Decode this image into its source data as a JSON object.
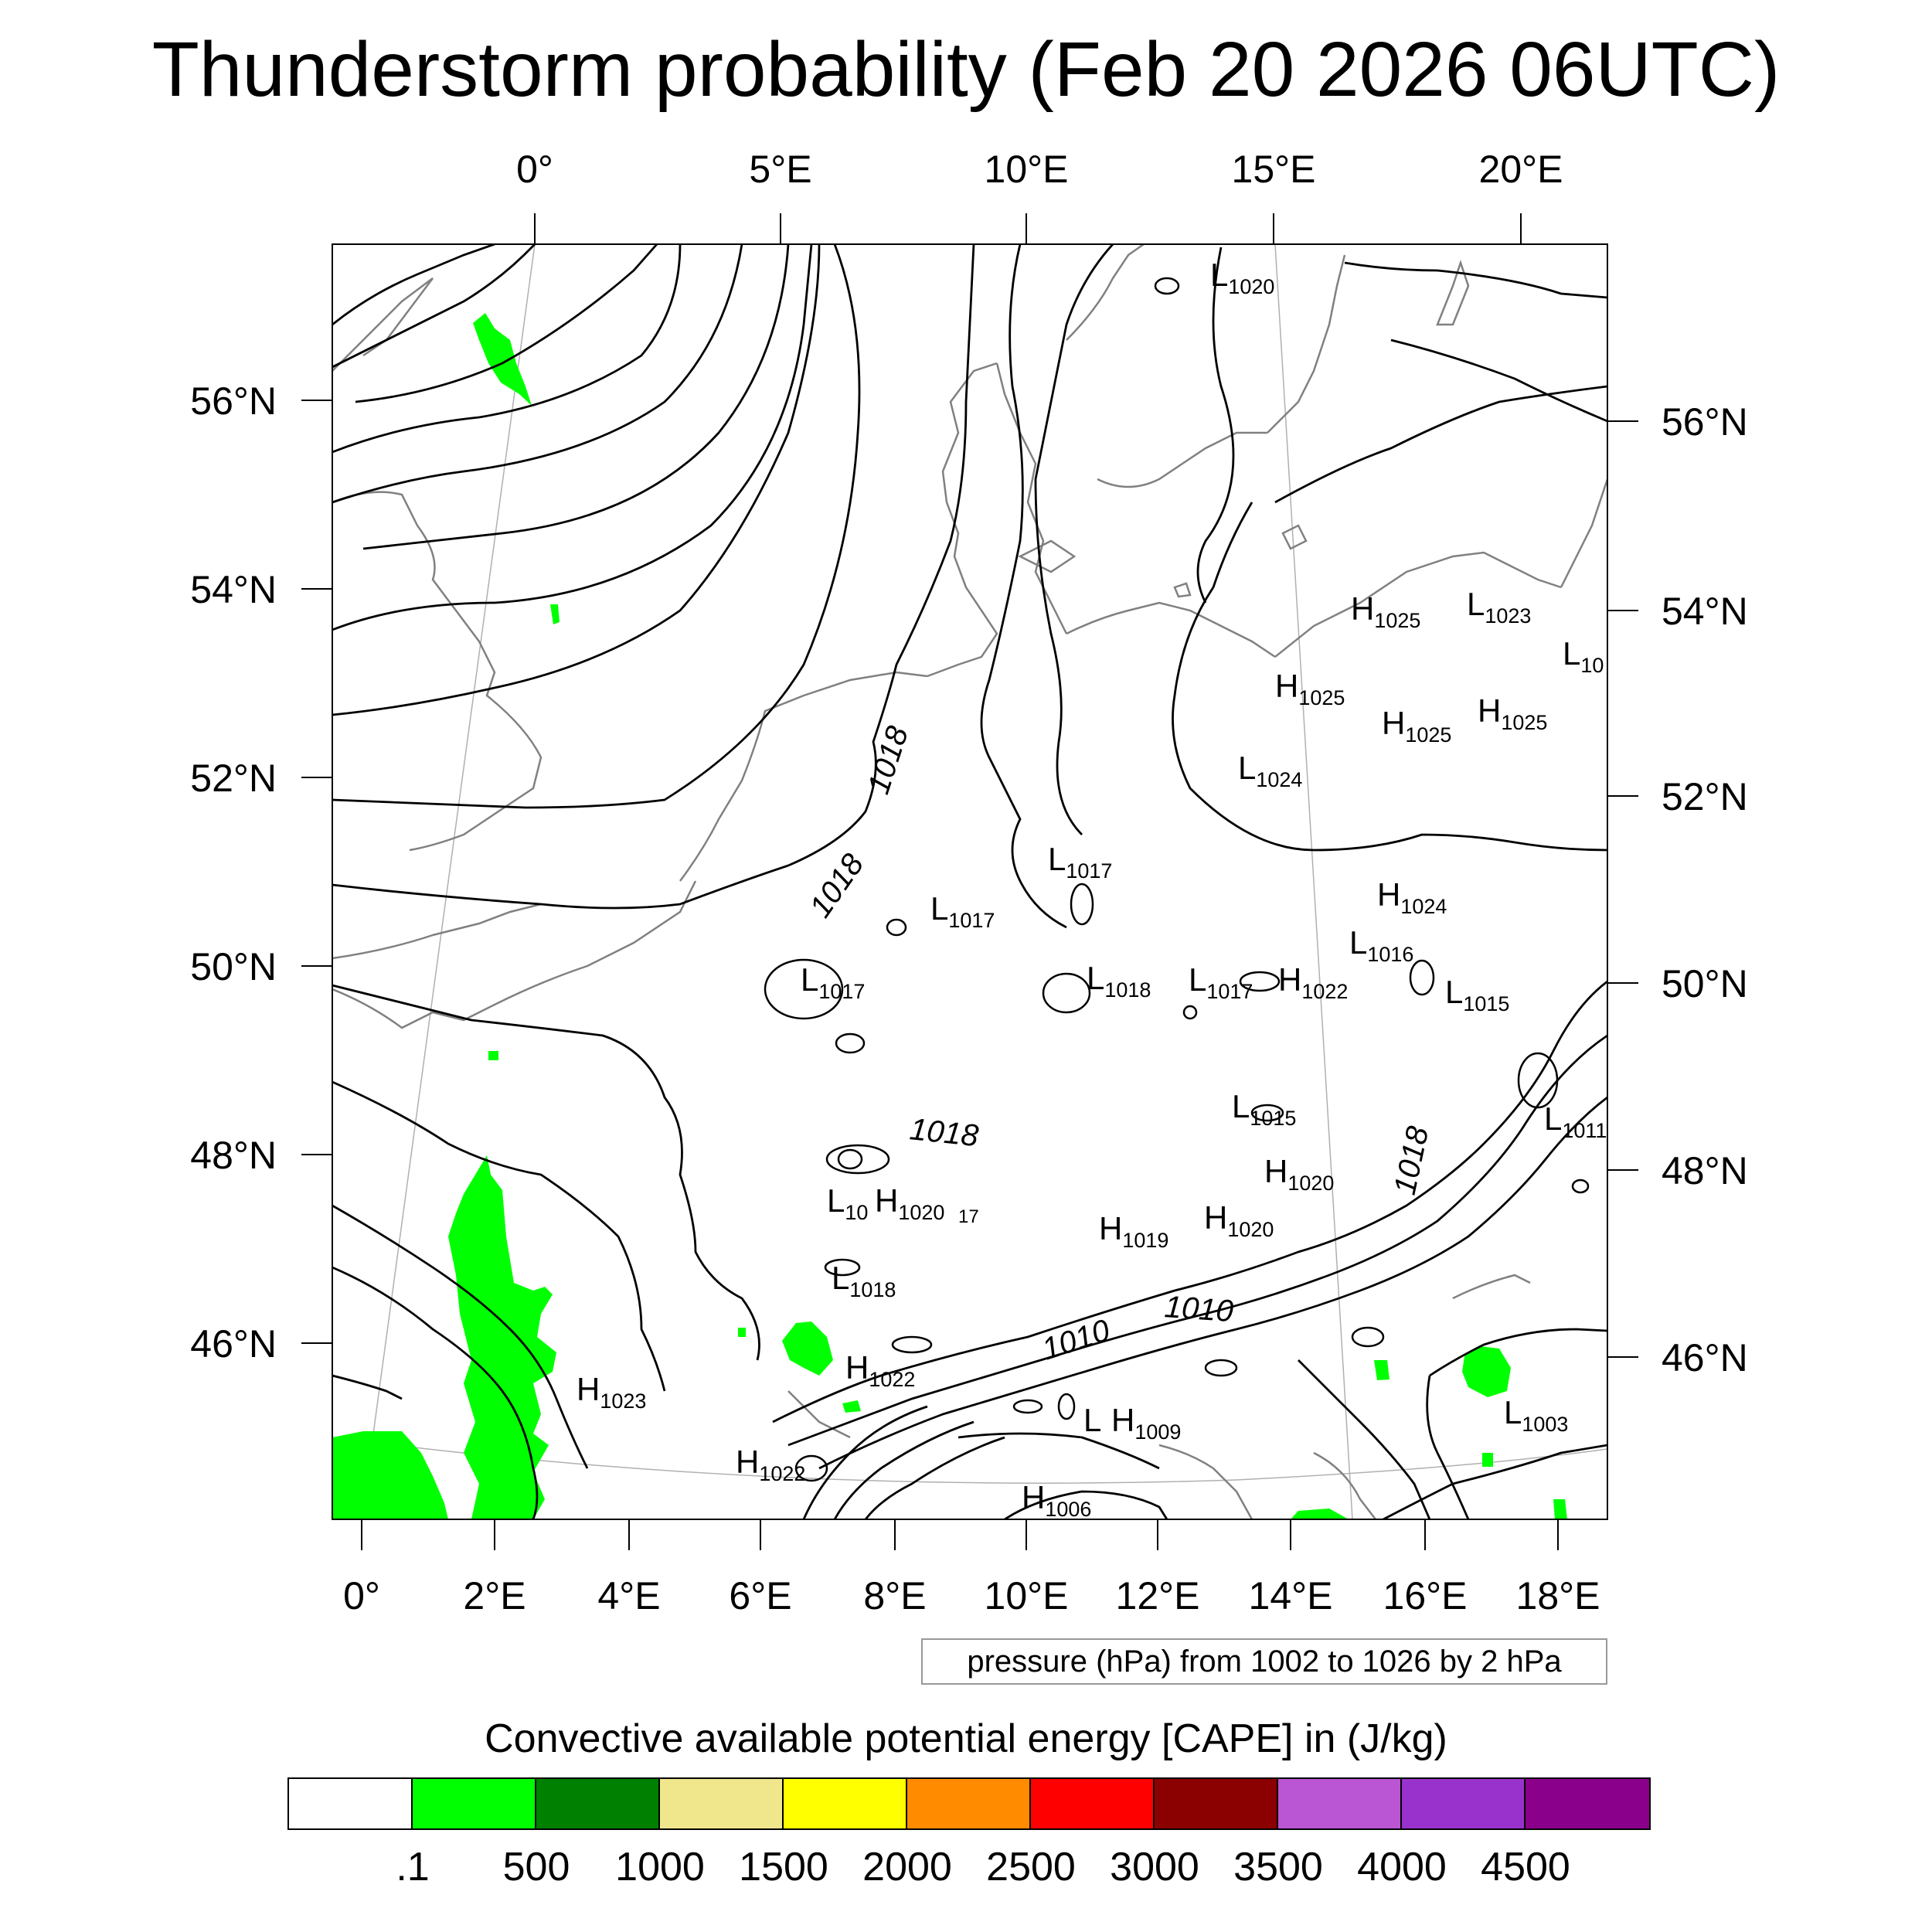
{
  "title": "Thunderstorm probability (Feb 20 2026 06UTC)",
  "map": {
    "top_lon_labels": [
      "0°",
      "5°E",
      "10°E",
      "15°E",
      "20°E"
    ],
    "bottom_lon_labels": [
      "0°",
      "2°E",
      "4°E",
      "6°E",
      "8°E",
      "10°E",
      "12°E",
      "14°E",
      "16°E",
      "18°E"
    ],
    "left_lat_labels": [
      "56°N",
      "54°N",
      "52°N",
      "50°N",
      "48°N",
      "46°N"
    ],
    "right_lat_labels": [
      "56°N",
      "54°N",
      "52°N",
      "50°N",
      "48°N",
      "46°N"
    ],
    "pressure_centers": [
      {
        "type": "L",
        "value": "1020"
      },
      {
        "type": "H",
        "value": "1025"
      },
      {
        "type": "L",
        "value": "1023"
      },
      {
        "type": "L",
        "value": "10"
      },
      {
        "type": "H",
        "value": "1025"
      },
      {
        "type": "H",
        "value": "1025"
      },
      {
        "type": "H",
        "value": "1025"
      },
      {
        "type": "L",
        "value": "1024"
      },
      {
        "type": "L",
        "value": "1017"
      },
      {
        "type": "L",
        "value": "1017"
      },
      {
        "type": "H",
        "value": "1024"
      },
      {
        "type": "L",
        "value": "1016"
      },
      {
        "type": "L",
        "value": "1017"
      },
      {
        "type": "L",
        "value": "1018"
      },
      {
        "type": "L",
        "value": "1017"
      },
      {
        "type": "H",
        "value": "1022"
      },
      {
        "type": "L",
        "value": "1015"
      },
      {
        "type": "L",
        "value": "1015"
      },
      {
        "type": "L",
        "value": "1011"
      },
      {
        "type": "H",
        "value": "1020"
      },
      {
        "type": "L",
        "value": "10"
      },
      {
        "type": "H",
        "value": "1020"
      },
      {
        "type": "H",
        "value": "1019"
      },
      {
        "type": "H",
        "value": "1020"
      },
      {
        "type": "L",
        "value": "1018"
      },
      {
        "type": "H",
        "value": "1022"
      },
      {
        "type": "H",
        "value": "1023"
      },
      {
        "type": "H",
        "value": "1009"
      },
      {
        "type": "L",
        "value": "1003"
      },
      {
        "type": "H",
        "value": "1022"
      },
      {
        "type": "H",
        "value": "1006"
      },
      {
        "type": "L",
        "value": ""
      }
    ],
    "isobar_labels": [
      "1018",
      "1018",
      "1018",
      "1018",
      "1010",
      "1010",
      "17"
    ],
    "colors": {
      "cape_green": "#00ff00",
      "coast": "#808080",
      "isobar": "#000000"
    }
  },
  "pressure_note": "pressure (hPa) from 1002 to 1026 by 2 hPa",
  "cape_legend": {
    "title": "Convective available potential energy [CAPE] in (J/kg)",
    "colors": [
      "#ffffff",
      "#00ff00",
      "#008000",
      "#f0e68c",
      "#ffff00",
      "#ff8c00",
      "#ff0000",
      "#8b0000",
      "#ba55d3",
      "#9932cc",
      "#8b008b"
    ],
    "labels": [
      ".1",
      "500",
      "1000",
      "1500",
      "2000",
      "2500",
      "3000",
      "3500",
      "4000",
      "4500"
    ]
  }
}
